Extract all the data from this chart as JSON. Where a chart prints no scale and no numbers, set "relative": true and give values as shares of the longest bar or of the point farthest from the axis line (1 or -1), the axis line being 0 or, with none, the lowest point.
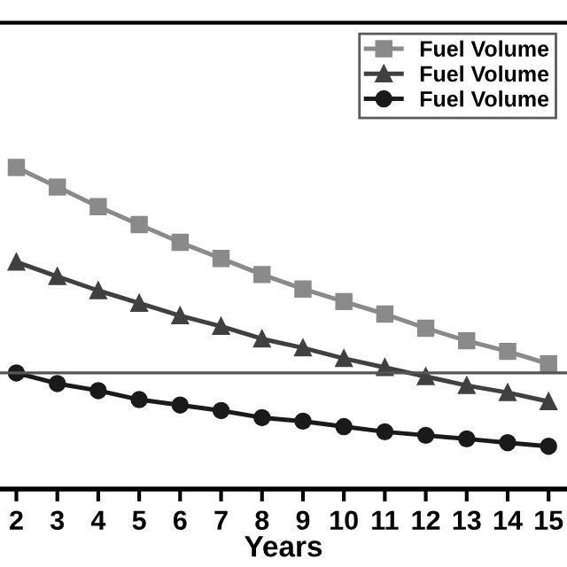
{
  "chart_data": {
    "type": "line",
    "relative": true,
    "xlabel": "Years",
    "categories": [
      "2",
      "3",
      "4",
      "5",
      "6",
      "7",
      "8",
      "9",
      "10",
      "11",
      "12",
      "13",
      "14",
      "15"
    ],
    "series": [
      {
        "name": "Fuel Volume",
        "color": "#8a8a8a",
        "marker": "square",
        "values": [
          1,
          0.939,
          0.878,
          0.822,
          0.767,
          0.717,
          0.667,
          0.622,
          0.583,
          0.544,
          0.5,
          0.461,
          0.428,
          0.389
        ]
      },
      {
        "name": "Fuel Volume",
        "color": "#404040",
        "marker": "triangle",
        "values": [
          0.706,
          0.661,
          0.617,
          0.578,
          0.539,
          0.506,
          0.467,
          0.439,
          0.406,
          0.378,
          0.35,
          0.322,
          0.3,
          0.272
        ]
      },
      {
        "name": "Fuel Volume",
        "color": "#1a1a1a",
        "marker": "circle",
        "values": [
          0.361,
          0.328,
          0.306,
          0.278,
          0.261,
          0.244,
          0.222,
          0.211,
          0.194,
          0.178,
          0.167,
          0.156,
          0.144,
          0.133
        ]
      }
    ],
    "ref_lines": [
      {
        "axis": "y",
        "value": 0.361,
        "color": "#555555"
      }
    ],
    "line_style": "solid",
    "grid": false,
    "legend": "top right"
  }
}
